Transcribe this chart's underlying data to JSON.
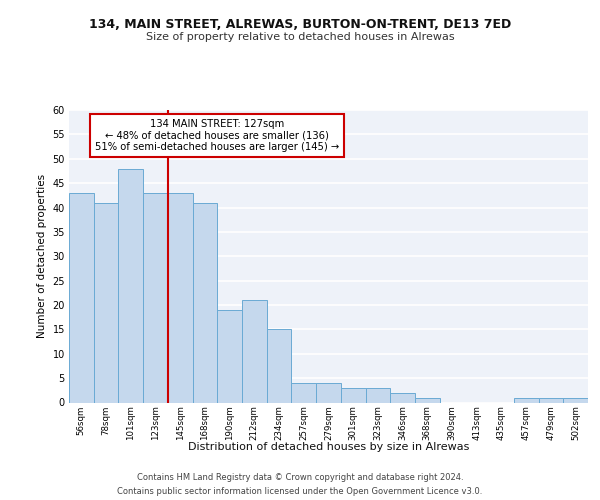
{
  "title1": "134, MAIN STREET, ALREWAS, BURTON-ON-TRENT, DE13 7ED",
  "title2": "Size of property relative to detached houses in Alrewas",
  "xlabel": "Distribution of detached houses by size in Alrewas",
  "ylabel": "Number of detached properties",
  "categories": [
    "56sqm",
    "78sqm",
    "101sqm",
    "123sqm",
    "145sqm",
    "168sqm",
    "190sqm",
    "212sqm",
    "234sqm",
    "257sqm",
    "279sqm",
    "301sqm",
    "323sqm",
    "346sqm",
    "368sqm",
    "390sqm",
    "413sqm",
    "435sqm",
    "457sqm",
    "479sqm",
    "502sqm"
  ],
  "values": [
    43,
    41,
    48,
    43,
    43,
    41,
    19,
    21,
    15,
    4,
    4,
    3,
    3,
    2,
    1,
    0,
    0,
    0,
    1,
    1,
    1
  ],
  "bar_color": "#c5d8ed",
  "bar_edge_color": "#6aaad4",
  "background_color": "#eef2f9",
  "grid_color": "#ffffff",
  "red_line_x": 3.5,
  "annotation_text": "134 MAIN STREET: 127sqm\n← 48% of detached houses are smaller (136)\n51% of semi-detached houses are larger (145) →",
  "annotation_box_color": "#ffffff",
  "annotation_box_edge": "#cc0000",
  "red_line_color": "#cc0000",
  "footer1": "Contains HM Land Registry data © Crown copyright and database right 2024.",
  "footer2": "Contains public sector information licensed under the Open Government Licence v3.0.",
  "ylim": [
    0,
    60
  ],
  "yticks": [
    0,
    5,
    10,
    15,
    20,
    25,
    30,
    35,
    40,
    45,
    50,
    55,
    60
  ]
}
